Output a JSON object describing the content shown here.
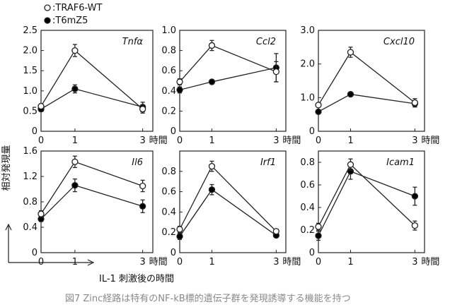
{
  "legend": {
    "wt_label": ":TRAF6-WT",
    "mut_label": ":T6mZ5"
  },
  "ylabel": "相対発現量",
  "xlabel": "IL-1 刺激後の時間",
  "time_unit": "時間",
  "caption": "図7 Zinc経路は特有のNF-kB標的遺伝子群を発現誘導する機能を持つ",
  "colors": {
    "wt_fill": "#ffffff",
    "mut_fill": "#000000",
    "line": "#222222"
  },
  "chart_data": [
    {
      "type": "line",
      "title": "Tnfα",
      "x": [
        0,
        1,
        3
      ],
      "xticks": [
        "0",
        "1",
        "3"
      ],
      "ylim": [
        0,
        2.5
      ],
      "yticks": [
        "0",
        "0.5",
        "1.0",
        "1.5",
        "2.0",
        "2.5"
      ],
      "ytick_values": [
        0,
        0.5,
        1.0,
        1.5,
        2.0,
        2.5
      ],
      "series": [
        {
          "name": "TRAF6-WT",
          "values": [
            0.62,
            2.0,
            0.55
          ],
          "errors": [
            0.06,
            0.15,
            0.1
          ]
        },
        {
          "name": "T6mZ5",
          "values": [
            0.55,
            1.05,
            0.6
          ],
          "errors": [
            0.06,
            0.1,
            0.12
          ]
        }
      ]
    },
    {
      "type": "line",
      "title": "Ccl2",
      "x": [
        0,
        1,
        3
      ],
      "xticks": [
        "0",
        "1",
        "3"
      ],
      "ylim": [
        0,
        1.0
      ],
      "yticks": [
        "0",
        "0.2",
        "0.4",
        "0.6",
        "0.8",
        "1.0"
      ],
      "ytick_values": [
        0,
        0.2,
        0.4,
        0.6,
        0.8,
        1.0
      ],
      "series": [
        {
          "name": "TRAF6-WT",
          "values": [
            0.49,
            0.85,
            0.59
          ],
          "errors": [
            0.03,
            0.05,
            0.1
          ]
        },
        {
          "name": "T6mZ5",
          "values": [
            0.41,
            0.49,
            0.63
          ],
          "errors": [
            0.03,
            0.02,
            0.14
          ]
        }
      ]
    },
    {
      "type": "line",
      "title": "Cxcl10",
      "x": [
        0,
        1,
        3
      ],
      "xticks": [
        "0",
        "1",
        "3"
      ],
      "ylim": [
        0,
        3.0
      ],
      "yticks": [
        "0",
        "1.0",
        "2.0",
        "3.0"
      ],
      "ytick_values": [
        0,
        1.0,
        2.0,
        3.0
      ],
      "series": [
        {
          "name": "TRAF6-WT",
          "values": [
            0.78,
            2.35,
            0.85
          ],
          "errors": [
            0.05,
            0.15,
            0.12
          ]
        },
        {
          "name": "T6mZ5",
          "values": [
            0.58,
            1.1,
            0.82
          ],
          "errors": [
            0.05,
            0.05,
            0.1
          ]
        }
      ]
    },
    {
      "type": "line",
      "title": "Il6",
      "x": [
        0,
        1,
        3
      ],
      "xticks": [
        "0",
        "1",
        "3"
      ],
      "ylim": [
        0,
        1.6
      ],
      "yticks": [
        "0",
        "0.4",
        "0.8",
        "1.2",
        "1.6"
      ],
      "ytick_values": [
        0,
        0.4,
        0.8,
        1.2,
        1.6
      ],
      "series": [
        {
          "name": "TRAF6-WT",
          "values": [
            0.61,
            1.43,
            1.05
          ],
          "errors": [
            0.05,
            0.09,
            0.09
          ]
        },
        {
          "name": "T6mZ5",
          "values": [
            0.53,
            1.06,
            0.73
          ],
          "errors": [
            0.04,
            0.1,
            0.1
          ]
        }
      ]
    },
    {
      "type": "line",
      "title": "Irf1",
      "x": [
        0,
        1,
        3
      ],
      "xticks": [
        "0",
        "1",
        "3"
      ],
      "ylim": [
        0,
        1.0
      ],
      "yticks": [
        "0",
        "0.2",
        "0.4",
        "0.6",
        "0.8"
      ],
      "ytick_values": [
        0,
        0.2,
        0.4,
        0.6,
        0.8
      ],
      "series": [
        {
          "name": "TRAF6-WT",
          "values": [
            0.23,
            0.85,
            0.21
          ],
          "errors": [
            0.03,
            0.05,
            0.02
          ]
        },
        {
          "name": "T6mZ5",
          "values": [
            0.16,
            0.62,
            0.17
          ],
          "errors": [
            0.03,
            0.05,
            0.02
          ]
        }
      ]
    },
    {
      "type": "line",
      "title": "Icam1",
      "x": [
        0,
        1,
        3
      ],
      "xticks": [
        "0",
        "1",
        "3"
      ],
      "ylim": [
        0,
        0.9
      ],
      "yticks": [
        "0",
        "0.2",
        "0.4",
        "0.6",
        "0.8"
      ],
      "ytick_values": [
        0,
        0.2,
        0.4,
        0.6,
        0.8
      ],
      "series": [
        {
          "name": "TRAF6-WT",
          "values": [
            0.23,
            0.78,
            0.24
          ],
          "errors": [
            0.03,
            0.05,
            0.04
          ]
        },
        {
          "name": "T6mZ5",
          "values": [
            0.15,
            0.72,
            0.5
          ],
          "errors": [
            0.04,
            0.07,
            0.08
          ]
        }
      ]
    }
  ]
}
